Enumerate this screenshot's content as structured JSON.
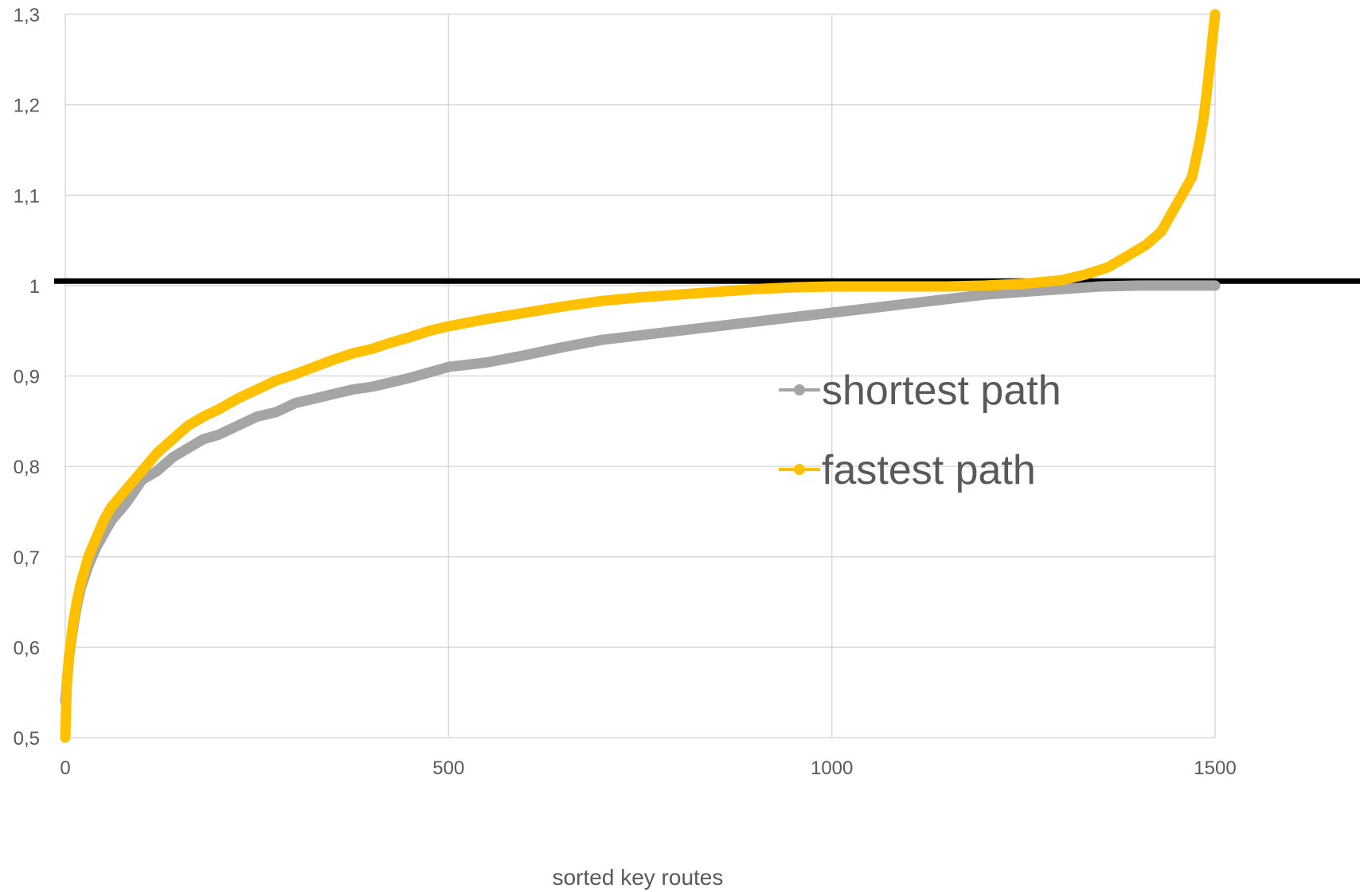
{
  "chart_data": {
    "type": "line",
    "title": "",
    "xlabel": "sorted key routes",
    "ylabel": "",
    "xlim": [
      0,
      1500
    ],
    "ylim": [
      0.5,
      1.3
    ],
    "x_ticks": [
      "0",
      "500",
      "1000",
      "1500"
    ],
    "y_ticks": [
      "0,5",
      "0,6",
      "0,7",
      "0,8",
      "0,9",
      "1",
      "1,1",
      "1,2",
      "1,3"
    ],
    "grid": true,
    "legend_position": "center-right",
    "reference_line": {
      "y": 1.005,
      "color": "#000000"
    },
    "series": [
      {
        "name": "shortest path",
        "color": "#a5a5a5",
        "x": [
          0,
          2,
          5,
          10,
          15,
          20,
          30,
          40,
          50,
          60,
          80,
          100,
          120,
          140,
          160,
          180,
          200,
          225,
          250,
          275,
          300,
          325,
          350,
          375,
          400,
          425,
          450,
          475,
          500,
          550,
          600,
          650,
          700,
          750,
          800,
          850,
          900,
          950,
          1000,
          1050,
          1100,
          1150,
          1200,
          1250,
          1300,
          1350,
          1400,
          1450,
          1500
        ],
        "y": [
          0.54,
          0.56,
          0.59,
          0.62,
          0.645,
          0.665,
          0.69,
          0.71,
          0.725,
          0.74,
          0.76,
          0.785,
          0.795,
          0.81,
          0.82,
          0.83,
          0.835,
          0.845,
          0.855,
          0.86,
          0.87,
          0.875,
          0.88,
          0.885,
          0.888,
          0.893,
          0.898,
          0.904,
          0.91,
          0.915,
          0.923,
          0.932,
          0.94,
          0.945,
          0.95,
          0.955,
          0.96,
          0.965,
          0.97,
          0.975,
          0.98,
          0.985,
          0.99,
          0.993,
          0.996,
          0.999,
          1.0,
          1.0,
          1.0
        ]
      },
      {
        "name": "fastest path",
        "color": "#ffc000",
        "x": [
          0,
          2,
          5,
          10,
          15,
          20,
          30,
          40,
          50,
          60,
          80,
          100,
          120,
          140,
          160,
          180,
          200,
          225,
          250,
          275,
          300,
          325,
          350,
          375,
          400,
          425,
          450,
          475,
          500,
          550,
          600,
          650,
          700,
          750,
          800,
          850,
          900,
          950,
          1000,
          1050,
          1100,
          1150,
          1200,
          1250,
          1300,
          1330,
          1360,
          1390,
          1410,
          1430,
          1440,
          1450,
          1460,
          1470,
          1475,
          1480,
          1485,
          1490,
          1495,
          1500
        ],
        "y": [
          0.5,
          0.56,
          0.59,
          0.625,
          0.65,
          0.67,
          0.7,
          0.72,
          0.74,
          0.755,
          0.775,
          0.795,
          0.815,
          0.83,
          0.845,
          0.855,
          0.863,
          0.875,
          0.885,
          0.895,
          0.902,
          0.91,
          0.918,
          0.925,
          0.93,
          0.937,
          0.943,
          0.95,
          0.955,
          0.963,
          0.97,
          0.977,
          0.983,
          0.987,
          0.99,
          0.993,
          0.996,
          0.998,
          0.999,
          0.999,
          0.999,
          0.999,
          1.0,
          1.002,
          1.006,
          1.012,
          1.02,
          1.035,
          1.045,
          1.06,
          1.075,
          1.09,
          1.105,
          1.12,
          1.14,
          1.16,
          1.185,
          1.22,
          1.26,
          1.3
        ]
      }
    ]
  }
}
